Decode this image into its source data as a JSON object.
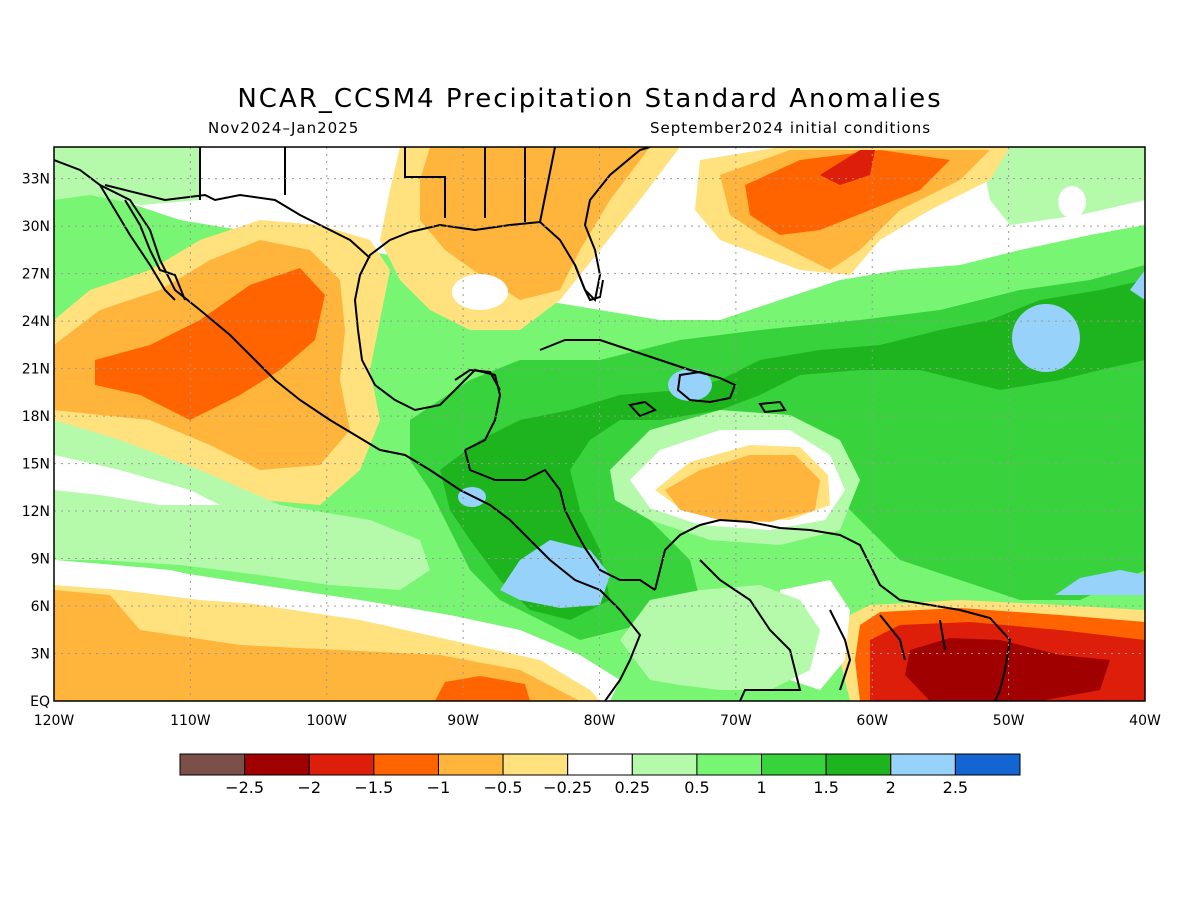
{
  "title": "NCAR_CCSM4 Precipitation Standard Anomalies",
  "period": "Nov2024–Jan2025",
  "init": "September2024 initial conditions",
  "lat_labels": [
    "33N",
    "30N",
    "27N",
    "24N",
    "21N",
    "18N",
    "15N",
    "12N",
    "9N",
    "6N",
    "3N",
    "EQ"
  ],
  "lat_values": [
    33,
    30,
    27,
    24,
    21,
    18,
    15,
    12,
    9,
    6,
    3,
    0
  ],
  "lon_labels": [
    "120W",
    "110W",
    "100W",
    "90W",
    "80W",
    "70W",
    "60W",
    "50W",
    "40W"
  ],
  "lon_values": [
    -120,
    -110,
    -100,
    -90,
    -80,
    -70,
    -60,
    -50,
    -40
  ],
  "colorbar": {
    "colors": [
      "#7a5048",
      "#a00000",
      "#dc1e0a",
      "#ff6400",
      "#ffb43c",
      "#ffe17e",
      "#ffffff",
      "#b4faaa",
      "#78f573",
      "#37d23c",
      "#1eb41e",
      "#96d2fa",
      "#1464d2"
    ],
    "labels": [
      "−2.5",
      "−2",
      "−1.5",
      "−1",
      "−0.5",
      "−0.25",
      "0.25",
      "0.5",
      "1",
      "1.5",
      "2",
      "2.5"
    ]
  },
  "colors": {
    "map_background": "#78f573",
    "neutral": "#ffffff",
    "dry_light": "#ffe17e",
    "dry_medium": "#ffb43c",
    "dry_strong": "#ff6400",
    "dry_very_strong": "#dc1e0a",
    "dry_extreme": "#a00000",
    "wet_light": "#b4faaa",
    "wet_medium": "#78f573",
    "wet_strong": "#37d23c",
    "wet_very_strong": "#1eb41e",
    "wet_extreme": "#96d2fa"
  }
}
